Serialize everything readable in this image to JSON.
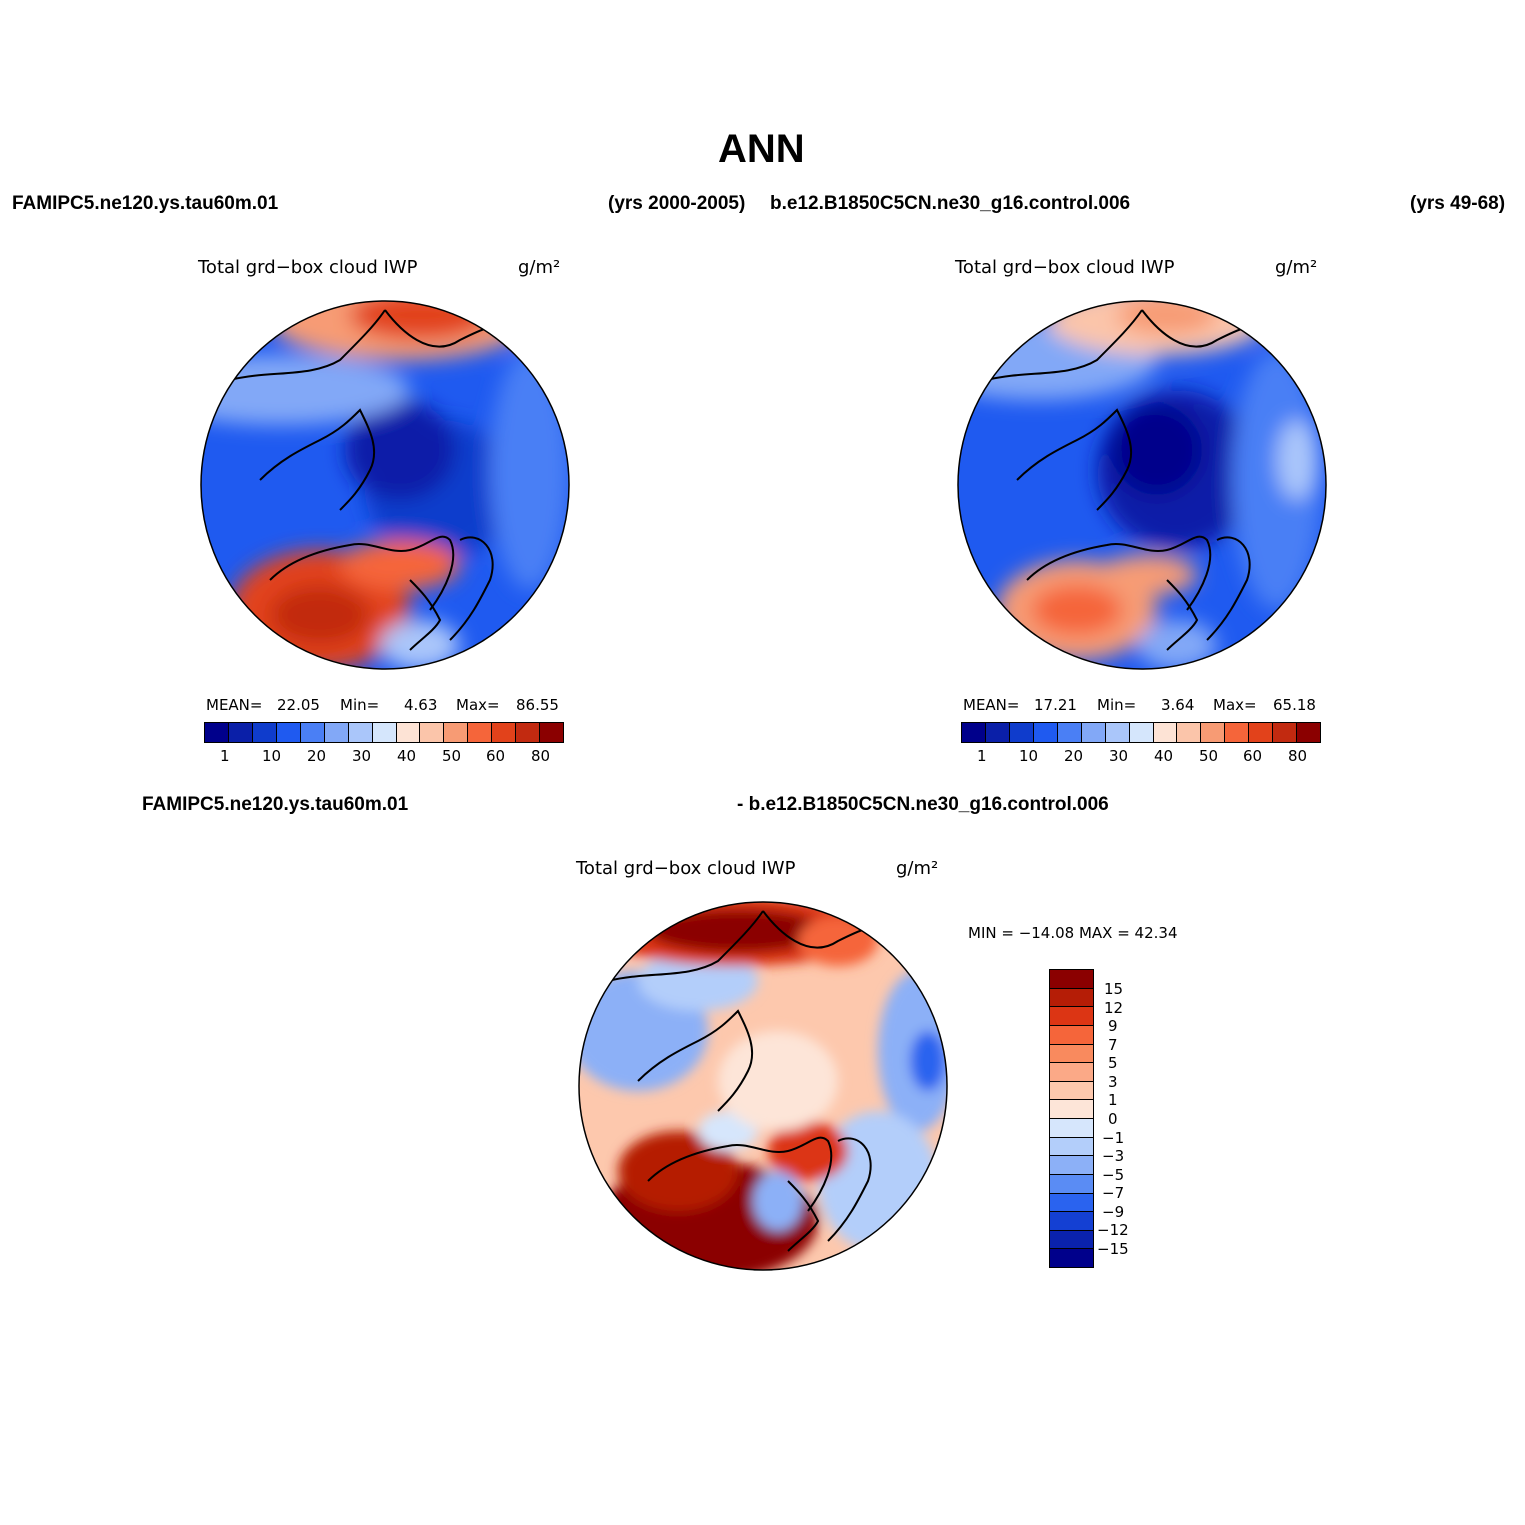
{
  "title": "ANN",
  "header": {
    "left_case": "FAMIPC5.ne120.ys.tau60m.01",
    "left_years": "(yrs 2000-2005)",
    "right_case": "b.e12.B1850C5CN.ne30_g16.control.006",
    "right_years": "(yrs 49-68)"
  },
  "panels": {
    "left": {
      "variable": "Total grd−box cloud IWP",
      "units": "g/m²",
      "stats": {
        "mean_label": "MEAN=",
        "mean": "22.05",
        "min_label": "Min=",
        "min": "4.63",
        "max_label": "Max=",
        "max": "86.55"
      }
    },
    "right": {
      "variable": "Total grd−box cloud IWP",
      "units": "g/m²",
      "stats": {
        "mean_label": "MEAN=",
        "mean": "17.21",
        "min_label": "Min=",
        "min": "3.64",
        "max_label": "Max=",
        "max": "65.18"
      }
    },
    "diff": {
      "case_left": "FAMIPC5.ne120.ys.tau60m.01",
      "case_right": "- b.e12.B1850C5CN.ne30_g16.control.006",
      "variable": "Total grd−box cloud IWP",
      "units": "g/m²",
      "minmax": "MIN = −14.08 MAX =  42.34"
    }
  },
  "colorbars": {
    "main": {
      "colors": [
        "#00008b",
        "#0a1fa8",
        "#0f3ccc",
        "#1f5af0",
        "#4a7ff5",
        "#82a8f7",
        "#aac6fa",
        "#d5e6fc",
        "#fde3d5",
        "#fbc5aa",
        "#f79b74",
        "#f5653a",
        "#e2421b",
        "#c22a10",
        "#8b0000"
      ],
      "ticks": [
        "1",
        "10",
        "20",
        "30",
        "40",
        "50",
        "60",
        "80"
      ]
    },
    "diff": {
      "colors": [
        "#8b0000",
        "#b51d06",
        "#dc3514",
        "#f5653a",
        "#f98a5e",
        "#fba987",
        "#fdc8ad",
        "#fde5d8",
        "#d6e6fc",
        "#b3cefa",
        "#8cb0f7",
        "#5a8cf4",
        "#2a63ef",
        "#1440d3",
        "#0a22ad",
        "#00008b"
      ],
      "ticks": [
        "15",
        "12",
        "9",
        "7",
        "5",
        "3",
        "1",
        "0",
        "−1",
        "−3",
        "−5",
        "−7",
        "−9",
        "−12",
        "−15"
      ]
    }
  }
}
